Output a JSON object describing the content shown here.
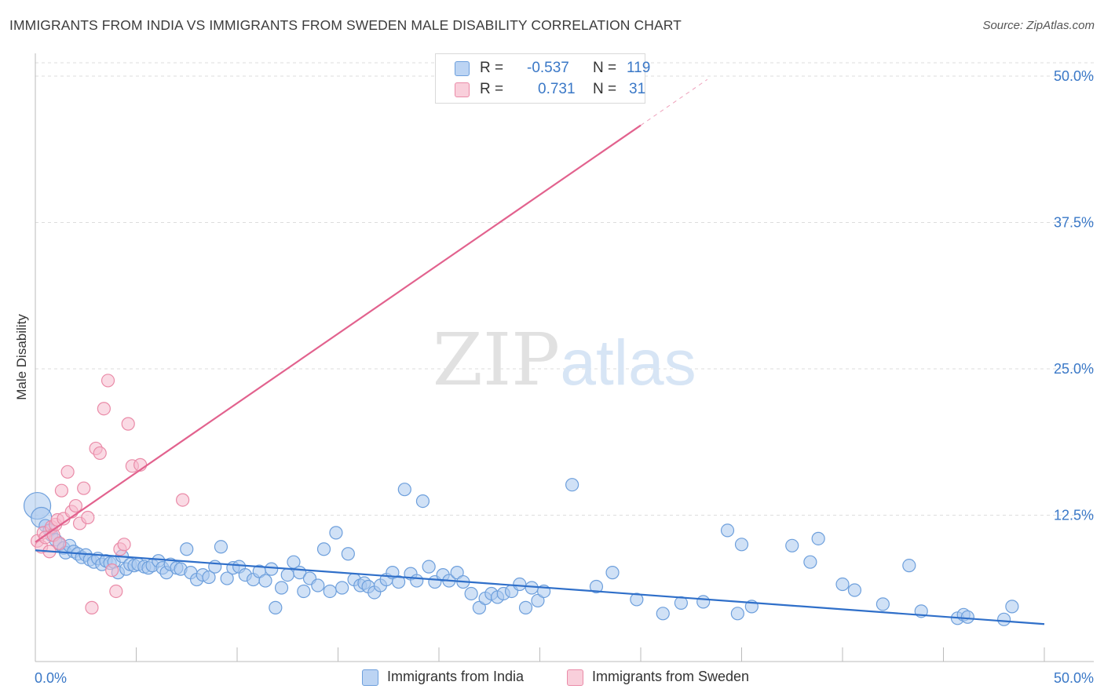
{
  "header": {
    "title": "IMMIGRANTS FROM INDIA VS IMMIGRANTS FROM SWEDEN MALE DISABILITY CORRELATION CHART",
    "source": "Source: ZipAtlas.com"
  },
  "legend": {
    "india": {
      "r_label": "R =",
      "r_value": "-0.537",
      "n_label": "N =",
      "n_value": "119"
    },
    "sweden": {
      "r_label": "R =",
      "r_value": "0.731",
      "n_label": "N =",
      "n_value": "31"
    }
  },
  "colors": {
    "india_fill": "#a9c8ef",
    "india_stroke": "#6d9fdc",
    "india_line": "#2f6fc9",
    "sweden_fill": "#f6bccd",
    "sweden_stroke": "#ea8ba8",
    "sweden_line": "#e2628e",
    "tick_label": "#3a78c7",
    "grid": "#dddddd"
  },
  "watermark": {
    "part1": "ZIP",
    "part2": "atlas"
  },
  "chart_data": {
    "type": "scatter",
    "ylabel": "Male Disability",
    "xlim": [
      0,
      50
    ],
    "ylim": [
      0,
      50
    ],
    "x_tick_labels": [
      "0.0%",
      "50.0%"
    ],
    "y_ticks": [
      12.5,
      25.0,
      37.5,
      50.0
    ],
    "y_tick_labels": [
      "12.5%",
      "25.0%",
      "37.5%",
      "50.0%"
    ],
    "grid": true,
    "legend_position": "bottom",
    "series": [
      {
        "name": "Immigrants from India",
        "trend": {
          "x": [
            0,
            50
          ],
          "y": [
            9.5,
            3.2
          ]
        },
        "points": [
          [
            0.1,
            13.3
          ],
          [
            0.3,
            12.3
          ],
          [
            0.5,
            11.6
          ],
          [
            0.7,
            11.2
          ],
          [
            0.8,
            10.8
          ],
          [
            1.0,
            10.4
          ],
          [
            1.2,
            10.0
          ],
          [
            1.4,
            9.7
          ],
          [
            1.5,
            9.3
          ],
          [
            1.7,
            9.9
          ],
          [
            1.9,
            9.4
          ],
          [
            2.1,
            9.2
          ],
          [
            2.3,
            8.9
          ],
          [
            2.5,
            9.1
          ],
          [
            2.7,
            8.7
          ],
          [
            2.9,
            8.5
          ],
          [
            3.1,
            8.8
          ],
          [
            3.3,
            8.3
          ],
          [
            3.5,
            8.6
          ],
          [
            3.7,
            8.4
          ],
          [
            3.9,
            8.5
          ],
          [
            4.1,
            7.6
          ],
          [
            4.3,
            9.0
          ],
          [
            4.5,
            7.9
          ],
          [
            4.7,
            8.3
          ],
          [
            4.9,
            8.2
          ],
          [
            5.1,
            8.3
          ],
          [
            5.4,
            8.1
          ],
          [
            5.6,
            8.0
          ],
          [
            5.8,
            8.2
          ],
          [
            6.1,
            8.6
          ],
          [
            6.3,
            8.0
          ],
          [
            6.5,
            7.6
          ],
          [
            6.7,
            8.3
          ],
          [
            7.0,
            8.0
          ],
          [
            7.2,
            7.9
          ],
          [
            7.5,
            9.6
          ],
          [
            7.7,
            7.6
          ],
          [
            8.0,
            7.0
          ],
          [
            8.3,
            7.4
          ],
          [
            8.6,
            7.2
          ],
          [
            8.9,
            8.1
          ],
          [
            9.2,
            9.8
          ],
          [
            9.5,
            7.1
          ],
          [
            9.8,
            8.0
          ],
          [
            10.1,
            8.1
          ],
          [
            10.4,
            7.4
          ],
          [
            10.8,
            7.0
          ],
          [
            11.1,
            7.7
          ],
          [
            11.4,
            6.9
          ],
          [
            11.7,
            7.9
          ],
          [
            11.9,
            4.6
          ],
          [
            12.2,
            6.3
          ],
          [
            12.5,
            7.4
          ],
          [
            12.8,
            8.5
          ],
          [
            13.1,
            7.6
          ],
          [
            13.3,
            6.0
          ],
          [
            13.6,
            7.1
          ],
          [
            14.0,
            6.5
          ],
          [
            14.3,
            9.6
          ],
          [
            14.6,
            6.0
          ],
          [
            14.9,
            11.0
          ],
          [
            15.2,
            6.3
          ],
          [
            15.5,
            9.2
          ],
          [
            15.8,
            7.0
          ],
          [
            16.1,
            6.5
          ],
          [
            16.3,
            6.7
          ],
          [
            16.5,
            6.4
          ],
          [
            16.8,
            5.9
          ],
          [
            17.1,
            6.5
          ],
          [
            17.4,
            7.0
          ],
          [
            17.7,
            7.6
          ],
          [
            18.0,
            6.8
          ],
          [
            18.3,
            14.7
          ],
          [
            18.6,
            7.5
          ],
          [
            18.9,
            6.9
          ],
          [
            19.2,
            13.7
          ],
          [
            19.5,
            8.1
          ],
          [
            19.8,
            6.8
          ],
          [
            20.2,
            7.4
          ],
          [
            20.5,
            6.9
          ],
          [
            20.9,
            7.6
          ],
          [
            21.2,
            6.8
          ],
          [
            21.6,
            5.8
          ],
          [
            22.0,
            4.6
          ],
          [
            22.3,
            5.4
          ],
          [
            22.6,
            5.8
          ],
          [
            22.9,
            5.5
          ],
          [
            23.2,
            5.8
          ],
          [
            23.6,
            6.0
          ],
          [
            24.0,
            6.6
          ],
          [
            24.3,
            4.6
          ],
          [
            24.6,
            6.3
          ],
          [
            24.9,
            5.2
          ],
          [
            25.2,
            6.0
          ],
          [
            26.6,
            15.1
          ],
          [
            27.8,
            6.4
          ],
          [
            28.6,
            7.6
          ],
          [
            29.8,
            5.3
          ],
          [
            31.1,
            4.1
          ],
          [
            32.0,
            5.0
          ],
          [
            33.1,
            5.1
          ],
          [
            34.3,
            11.2
          ],
          [
            34.8,
            4.1
          ],
          [
            35.0,
            10.0
          ],
          [
            35.5,
            4.7
          ],
          [
            37.5,
            9.9
          ],
          [
            38.4,
            8.5
          ],
          [
            38.8,
            10.5
          ],
          [
            40.0,
            6.6
          ],
          [
            40.6,
            6.1
          ],
          [
            42.0,
            4.9
          ],
          [
            43.3,
            8.2
          ],
          [
            43.9,
            4.3
          ],
          [
            45.7,
            3.7
          ],
          [
            46.0,
            4.0
          ],
          [
            46.2,
            3.8
          ],
          [
            48.0,
            3.6
          ],
          [
            48.4,
            4.7
          ]
        ]
      },
      {
        "name": "Immigrants from Sweden",
        "trend": {
          "x": [
            0,
            30
          ],
          "y": [
            10.2,
            45.8
          ]
        },
        "points": [
          [
            0.1,
            10.3
          ],
          [
            0.3,
            9.8
          ],
          [
            0.4,
            11.0
          ],
          [
            0.5,
            10.6
          ],
          [
            0.7,
            9.4
          ],
          [
            0.8,
            11.5
          ],
          [
            0.9,
            10.8
          ],
          [
            1.0,
            11.7
          ],
          [
            1.1,
            12.1
          ],
          [
            1.2,
            10.1
          ],
          [
            1.3,
            14.6
          ],
          [
            1.4,
            12.2
          ],
          [
            1.6,
            16.2
          ],
          [
            1.8,
            12.8
          ],
          [
            2.0,
            13.3
          ],
          [
            2.2,
            11.8
          ],
          [
            2.4,
            14.8
          ],
          [
            2.6,
            12.3
          ],
          [
            2.8,
            4.6
          ],
          [
            3.0,
            18.2
          ],
          [
            3.2,
            17.8
          ],
          [
            3.4,
            21.6
          ],
          [
            3.6,
            24.0
          ],
          [
            3.8,
            7.8
          ],
          [
            4.0,
            6.0
          ],
          [
            4.2,
            9.6
          ],
          [
            4.4,
            10.0
          ],
          [
            4.6,
            20.3
          ],
          [
            4.8,
            16.7
          ],
          [
            5.2,
            16.8
          ],
          [
            7.3,
            13.8
          ]
        ]
      }
    ]
  },
  "bottom_legend": {
    "india": "Immigrants from India",
    "sweden": "Immigrants from Sweden"
  }
}
